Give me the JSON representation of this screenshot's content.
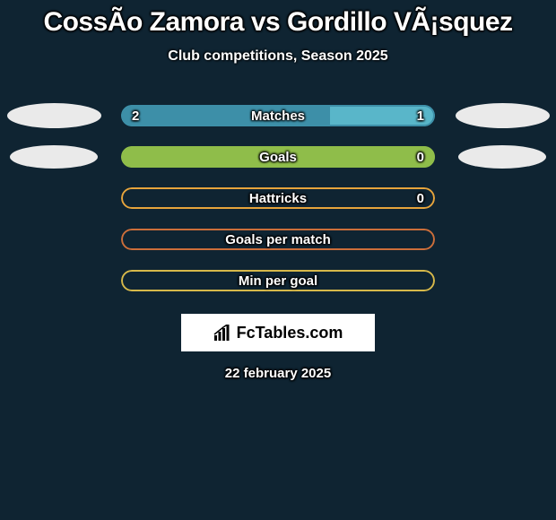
{
  "title": "CossÃo Zamora vs Gordillo VÃ¡squez",
  "subtitle": "Club competitions, Season 2025",
  "date": "22 february 2025",
  "logo": {
    "text": "FcTables.com"
  },
  "colors": {
    "background": "#0f2432",
    "bubble": "#eaeaea",
    "text": "#ffffff",
    "logo_bg": "#ffffff",
    "logo_text": "#000000"
  },
  "bars": [
    {
      "label": "Matches",
      "left_value": "2",
      "right_value": "1",
      "left_pct": 66.7,
      "right_pct": 33.3,
      "left_color": "#3d8fa8",
      "right_color": "#59b6c9",
      "border_color": "#3d8fa8",
      "show_left_bubble": true,
      "show_right_bubble": true,
      "bubble_small": false
    },
    {
      "label": "Goals",
      "left_value": "",
      "right_value": "0",
      "left_pct": 100,
      "right_pct": 0,
      "left_color": "#8fbd4a",
      "right_color": "#b6d97a",
      "border_color": "#8fbd4a",
      "show_left_bubble": true,
      "show_right_bubble": true,
      "bubble_small": true
    },
    {
      "label": "Hattricks",
      "left_value": "",
      "right_value": "0",
      "left_pct": 0,
      "right_pct": 0,
      "left_color": "#e6a43c",
      "right_color": "#f0c06a",
      "border_color": "#e6a43c",
      "show_left_bubble": false,
      "show_right_bubble": false,
      "bubble_small": false
    },
    {
      "label": "Goals per match",
      "left_value": "",
      "right_value": "",
      "left_pct": 0,
      "right_pct": 0,
      "left_color": "#cc6e3a",
      "right_color": "#e09060",
      "border_color": "#cc6e3a",
      "show_left_bubble": false,
      "show_right_bubble": false,
      "bubble_small": false
    },
    {
      "label": "Min per goal",
      "left_value": "",
      "right_value": "",
      "left_pct": 0,
      "right_pct": 0,
      "left_color": "#d6b84a",
      "right_color": "#e8d080",
      "border_color": "#d6b84a",
      "show_left_bubble": false,
      "show_right_bubble": false,
      "bubble_small": false
    }
  ]
}
